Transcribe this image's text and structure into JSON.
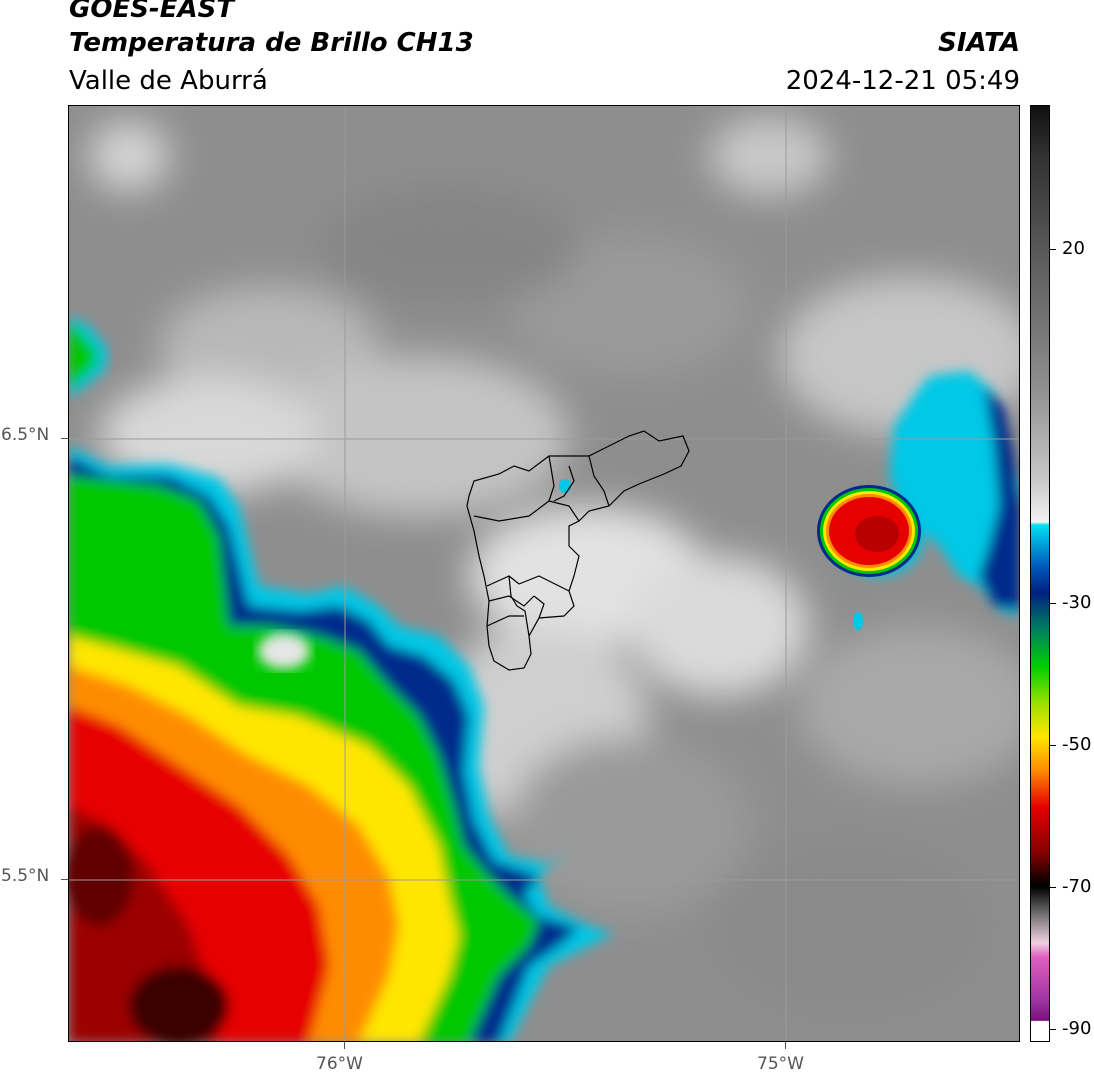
{
  "header": {
    "satellite": "GOES-EAST",
    "product": "Temperatura de Brillo CH13",
    "region": "Valle de Aburrá",
    "organization": "SIATA",
    "datetime": "2024-12-21 05:49"
  },
  "map": {
    "lat_labels": [
      "6.5°N",
      "5.5°N"
    ],
    "lon_labels": [
      "76°W",
      "75°W"
    ]
  },
  "colorbar": {
    "tick_labels": [
      "20",
      "-30",
      "-50",
      "-70",
      "-90"
    ],
    "colors": {
      "warm_gray": "#8a8a8a",
      "cold_cyan": "#00c8e6",
      "blue": "#002a8c",
      "green": "#00c800",
      "yellow": "#ffe600",
      "orange": "#ff8c00",
      "red": "#e60000",
      "dark_red": "#3a0000",
      "magenta": "#cc44cc"
    }
  }
}
